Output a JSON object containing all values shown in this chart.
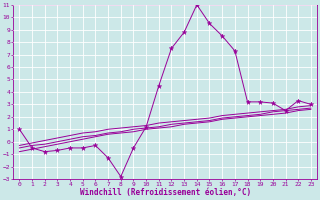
{
  "xlabel": "Windchill (Refroidissement éolien,°C)",
  "x": [
    0,
    1,
    2,
    3,
    4,
    5,
    6,
    7,
    8,
    9,
    10,
    11,
    12,
    13,
    14,
    15,
    16,
    17,
    18,
    19,
    20,
    21,
    22,
    23
  ],
  "y_main": [
    1.0,
    -0.5,
    -0.8,
    -0.7,
    -0.5,
    -0.5,
    -0.3,
    -1.3,
    -2.8,
    -0.5,
    1.2,
    4.5,
    7.5,
    8.8,
    11.0,
    9.5,
    8.5,
    7.3,
    3.2,
    3.2,
    3.1,
    2.5,
    3.3,
    3.0
  ],
  "y_trend1": [
    -0.8,
    -0.6,
    -0.4,
    -0.2,
    0.0,
    0.2,
    0.4,
    0.6,
    0.7,
    0.8,
    1.0,
    1.1,
    1.2,
    1.4,
    1.5,
    1.6,
    1.8,
    1.9,
    2.0,
    2.1,
    2.2,
    2.3,
    2.5,
    2.6
  ],
  "y_trend2": [
    -0.5,
    -0.3,
    -0.2,
    0.0,
    0.2,
    0.4,
    0.5,
    0.7,
    0.8,
    1.0,
    1.1,
    1.2,
    1.4,
    1.5,
    1.6,
    1.7,
    1.9,
    2.0,
    2.1,
    2.2,
    2.4,
    2.5,
    2.6,
    2.7
  ],
  "y_trend3": [
    -0.3,
    -0.1,
    0.1,
    0.3,
    0.5,
    0.7,
    0.8,
    1.0,
    1.1,
    1.2,
    1.3,
    1.5,
    1.6,
    1.7,
    1.8,
    1.9,
    2.1,
    2.2,
    2.3,
    2.4,
    2.5,
    2.6,
    2.8,
    2.9
  ],
  "line_color": "#990099",
  "bg_color": "#cce8e8",
  "grid_color": "#aacccc",
  "ylim": [
    -3,
    11
  ],
  "xlim": [
    -0.5,
    23.5
  ],
  "yticks": [
    -3,
    -2,
    -1,
    0,
    1,
    2,
    3,
    4,
    5,
    6,
    7,
    8,
    9,
    10,
    11
  ],
  "xticks": [
    0,
    1,
    2,
    3,
    4,
    5,
    6,
    7,
    8,
    9,
    10,
    11,
    12,
    13,
    14,
    15,
    16,
    17,
    18,
    19,
    20,
    21,
    22,
    23
  ]
}
